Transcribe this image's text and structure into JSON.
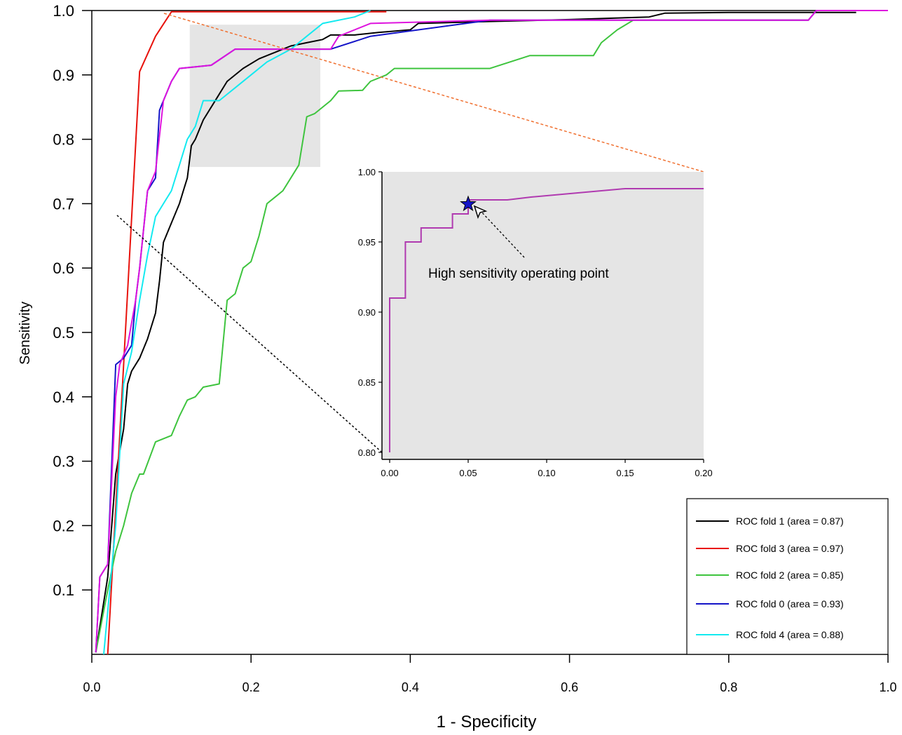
{
  "chart_data": [
    {
      "type": "line",
      "xlabel": "1 - Specificity",
      "ylabel": "Sensitivity",
      "xlim": [
        0.0,
        1.0
      ],
      "ylim": [
        0.0,
        1.0
      ],
      "x_ticks": [
        "0.0",
        "0.2",
        "0.4",
        "0.6",
        "0.8",
        "1.0"
      ],
      "y_ticks": [
        "0.1",
        "0.2",
        "0.3",
        "0.4",
        "0.5",
        "0.6",
        "0.7",
        "0.8",
        "0.9",
        "1.0"
      ],
      "grid": false,
      "legend_position": "bottom-right",
      "zoom_region": {
        "x": [
          0.123,
          0.287
        ],
        "y": [
          0.757,
          0.978
        ]
      },
      "series": [
        {
          "name": "ROC fold 1 (area = 0.87)",
          "color": "#000000",
          "points": [
            [
              0.005,
              0.003
            ],
            [
              0.02,
              0.12
            ],
            [
              0.03,
              0.28
            ],
            [
              0.04,
              0.35
            ],
            [
              0.045,
              0.42
            ],
            [
              0.05,
              0.44
            ],
            [
              0.06,
              0.46
            ],
            [
              0.07,
              0.49
            ],
            [
              0.08,
              0.53
            ],
            [
              0.085,
              0.58
            ],
            [
              0.09,
              0.64
            ],
            [
              0.1,
              0.67
            ],
            [
              0.11,
              0.7
            ],
            [
              0.115,
              0.72
            ],
            [
              0.12,
              0.74
            ],
            [
              0.125,
              0.79
            ],
            [
              0.13,
              0.8
            ],
            [
              0.14,
              0.83
            ],
            [
              0.15,
              0.85
            ],
            [
              0.16,
              0.87
            ],
            [
              0.17,
              0.89
            ],
            [
              0.19,
              0.91
            ],
            [
              0.21,
              0.925
            ],
            [
              0.23,
              0.935
            ],
            [
              0.25,
              0.945
            ],
            [
              0.27,
              0.95
            ],
            [
              0.29,
              0.955
            ],
            [
              0.3,
              0.962
            ],
            [
              0.33,
              0.962
            ],
            [
              0.36,
              0.966
            ],
            [
              0.4,
              0.97
            ],
            [
              0.41,
              0.98
            ],
            [
              0.5,
              0.983
            ],
            [
              0.6,
              0.986
            ],
            [
              0.7,
              0.99
            ],
            [
              0.72,
              0.996
            ],
            [
              0.8,
              0.997
            ],
            [
              0.96,
              0.997
            ]
          ]
        },
        {
          "name": "ROC fold 3 (area = 0.97)",
          "color": "#e8120c",
          "points": [
            [
              0.02,
              0.0
            ],
            [
              0.04,
              0.45
            ],
            [
              0.06,
              0.905
            ],
            [
              0.08,
              0.96
            ],
            [
              0.1,
              0.998
            ],
            [
              0.15,
              0.998
            ],
            [
              0.25,
              0.998
            ],
            [
              0.37,
              0.998
            ]
          ]
        },
        {
          "name": "ROC  fold  2 (area = 0.85)",
          "color": "#3ec43e",
          "points": [
            [
              0.005,
              0.003
            ],
            [
              0.02,
              0.1
            ],
            [
              0.03,
              0.16
            ],
            [
              0.04,
              0.2
            ],
            [
              0.05,
              0.25
            ],
            [
              0.06,
              0.28
            ],
            [
              0.065,
              0.28
            ],
            [
              0.08,
              0.33
            ],
            [
              0.1,
              0.34
            ],
            [
              0.11,
              0.37
            ],
            [
              0.12,
              0.395
            ],
            [
              0.13,
              0.4
            ],
            [
              0.14,
              0.415
            ],
            [
              0.16,
              0.42
            ],
            [
              0.17,
              0.55
            ],
            [
              0.18,
              0.56
            ],
            [
              0.19,
              0.6
            ],
            [
              0.2,
              0.61
            ],
            [
              0.21,
              0.65
            ],
            [
              0.22,
              0.7
            ],
            [
              0.23,
              0.71
            ],
            [
              0.24,
              0.72
            ],
            [
              0.25,
              0.74
            ],
            [
              0.26,
              0.76
            ],
            [
              0.27,
              0.835
            ],
            [
              0.28,
              0.84
            ],
            [
              0.3,
              0.86
            ],
            [
              0.31,
              0.875
            ],
            [
              0.34,
              0.876
            ],
            [
              0.35,
              0.89
            ],
            [
              0.37,
              0.9
            ],
            [
              0.38,
              0.91
            ],
            [
              0.5,
              0.91
            ],
            [
              0.55,
              0.93
            ],
            [
              0.6,
              0.93
            ],
            [
              0.63,
              0.93
            ],
            [
              0.64,
              0.95
            ],
            [
              0.66,
              0.97
            ],
            [
              0.68,
              0.985
            ],
            [
              0.8,
              0.985
            ],
            [
              0.9,
              0.985
            ],
            [
              0.91,
              1.0
            ],
            [
              1.0,
              1.0
            ]
          ]
        },
        {
          "name": "ROC fold 0 (area = 0.93)",
          "color": "#1414c8",
          "points": [
            [
              0.005,
              0.003
            ],
            [
              0.01,
              0.12
            ],
            [
              0.02,
              0.14
            ],
            [
              0.03,
              0.45
            ],
            [
              0.04,
              0.46
            ],
            [
              0.05,
              0.48
            ],
            [
              0.055,
              0.55
            ],
            [
              0.06,
              0.6
            ],
            [
              0.07,
              0.72
            ],
            [
              0.08,
              0.74
            ],
            [
              0.085,
              0.845
            ],
            [
              0.09,
              0.86
            ],
            [
              0.1,
              0.89
            ],
            [
              0.11,
              0.91
            ],
            [
              0.15,
              0.915
            ],
            [
              0.18,
              0.94
            ],
            [
              0.3,
              0.94
            ],
            [
              0.35,
              0.96
            ],
            [
              0.5,
              0.985
            ],
            [
              0.9,
              0.985
            ],
            [
              0.91,
              1.0
            ],
            [
              1.0,
              1.0
            ]
          ]
        },
        {
          "name": "ROC  fold  4 (area = 0.88)",
          "color": "#13eaf0",
          "points": [
            [
              0.015,
              0.0
            ],
            [
              0.03,
              0.2
            ],
            [
              0.04,
              0.42
            ],
            [
              0.05,
              0.47
            ],
            [
              0.06,
              0.55
            ],
            [
              0.07,
              0.62
            ],
            [
              0.08,
              0.68
            ],
            [
              0.09,
              0.7
            ],
            [
              0.1,
              0.72
            ],
            [
              0.11,
              0.76
            ],
            [
              0.12,
              0.8
            ],
            [
              0.13,
              0.82
            ],
            [
              0.14,
              0.86
            ],
            [
              0.16,
              0.86
            ],
            [
              0.18,
              0.88
            ],
            [
              0.2,
              0.9
            ],
            [
              0.22,
              0.92
            ],
            [
              0.25,
              0.94
            ],
            [
              0.27,
              0.96
            ],
            [
              0.29,
              0.98
            ],
            [
              0.33,
              0.99
            ],
            [
              0.35,
              1.0
            ]
          ]
        },
        {
          "name": "",
          "color": "#de14de",
          "points": [
            [
              0.005,
              0.003
            ],
            [
              0.01,
              0.12
            ],
            [
              0.02,
              0.14
            ],
            [
              0.03,
              0.4
            ],
            [
              0.035,
              0.45
            ],
            [
              0.045,
              0.48
            ],
            [
              0.055,
              0.55
            ],
            [
              0.06,
              0.6
            ],
            [
              0.07,
              0.72
            ],
            [
              0.08,
              0.75
            ],
            [
              0.09,
              0.86
            ],
            [
              0.1,
              0.89
            ],
            [
              0.11,
              0.91
            ],
            [
              0.15,
              0.915
            ],
            [
              0.18,
              0.94
            ],
            [
              0.3,
              0.94
            ],
            [
              0.31,
              0.96
            ],
            [
              0.35,
              0.98
            ],
            [
              0.5,
              0.985
            ],
            [
              0.9,
              0.985
            ],
            [
              0.91,
              1.0
            ],
            [
              1.0,
              1.0
            ]
          ]
        }
      ]
    },
    {
      "type": "line",
      "xlim": [
        0.0,
        0.2
      ],
      "ylim": [
        0.8,
        1.0
      ],
      "x_ticks": [
        "0.00",
        "0.05",
        "0.10",
        "0.15",
        "0.20"
      ],
      "y_ticks": [
        "0.80",
        "0.85",
        "0.90",
        "0.95",
        "1.00"
      ],
      "background": "#e5e5e5",
      "series": [
        {
          "name": "",
          "color": "#b03ab0",
          "points": [
            [
              0.0,
              0.8
            ],
            [
              0.0,
              0.91
            ],
            [
              0.01,
              0.91
            ],
            [
              0.01,
              0.95
            ],
            [
              0.02,
              0.95
            ],
            [
              0.02,
              0.96
            ],
            [
              0.04,
              0.96
            ],
            [
              0.04,
              0.97
            ],
            [
              0.05,
              0.97
            ],
            [
              0.05,
              0.98
            ],
            [
              0.075,
              0.98
            ],
            [
              0.09,
              0.982
            ],
            [
              0.15,
              0.988
            ],
            [
              0.2,
              0.988
            ]
          ]
        }
      ],
      "annotation": {
        "text": "High sensitivity operating point",
        "x": 0.05,
        "y": 0.977,
        "marker": "star",
        "marker_color": "#1414c8"
      }
    }
  ]
}
